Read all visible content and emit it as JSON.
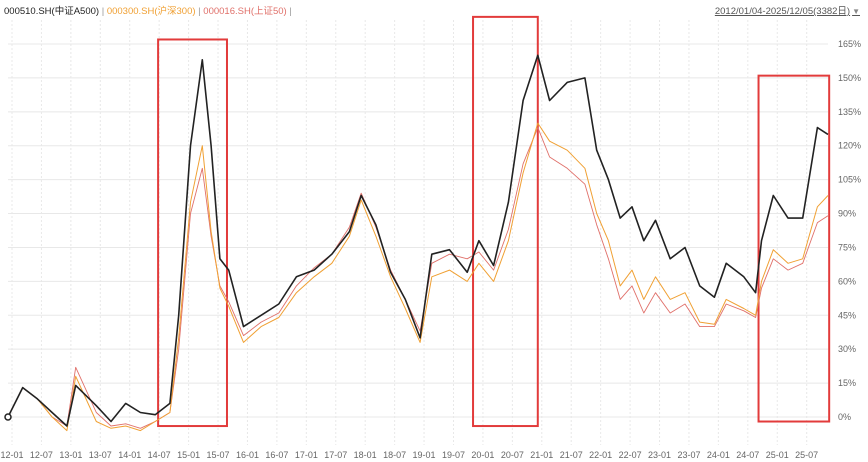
{
  "legend": [
    {
      "label": "000510.SH(中证A500)",
      "color": "#222222"
    },
    {
      "label": "000300.SH(沪深300)",
      "color": "#f0a033"
    },
    {
      "label": "000016.SH(上证50)",
      "color": "#e0706a"
    }
  ],
  "legend_sep": "|",
  "date_range": "2012/01/04-2025/12/05(3382日)",
  "colors": {
    "grid": "#e8e8e8",
    "highlight": "#e23b3b"
  },
  "chart_data": {
    "type": "line",
    "title": "",
    "xlabel": "",
    "ylabel": "",
    "y_unit": "%",
    "ylim": [
      -5,
      170
    ],
    "yticks": [
      0,
      15,
      30,
      45,
      60,
      75,
      90,
      105,
      120,
      135,
      150,
      165
    ],
    "xticks": [
      "12-01",
      "12-07",
      "13-01",
      "13-07",
      "14-01",
      "14-07",
      "15-01",
      "15-07",
      "16-01",
      "16-07",
      "17-01",
      "17-07",
      "18-01",
      "18-07",
      "19-01",
      "19-07",
      "20-01",
      "20-07",
      "21-01",
      "21-07",
      "22-01",
      "22-07",
      "23-01",
      "23-07",
      "24-01",
      "24-07",
      "25-01",
      "25-07"
    ],
    "grid": true,
    "legend_position": "top-left",
    "x": [
      2012.0,
      2012.25,
      2012.5,
      2012.75,
      2013.0,
      2013.15,
      2013.5,
      2013.75,
      2014.0,
      2014.25,
      2014.5,
      2014.75,
      2014.9,
      2015.1,
      2015.3,
      2015.45,
      2015.6,
      2015.75,
      2016.0,
      2016.3,
      2016.6,
      2016.9,
      2017.2,
      2017.5,
      2017.8,
      2018.0,
      2018.25,
      2018.5,
      2018.75,
      2019.0,
      2019.2,
      2019.5,
      2019.8,
      2020.0,
      2020.25,
      2020.5,
      2020.75,
      2021.0,
      2021.2,
      2021.5,
      2021.8,
      2022.0,
      2022.2,
      2022.4,
      2022.6,
      2022.8,
      2023.0,
      2023.25,
      2023.5,
      2023.75,
      2024.0,
      2024.2,
      2024.5,
      2024.7,
      2024.8,
      2025.0,
      2025.25,
      2025.5,
      2025.75,
      2025.93
    ],
    "series": [
      {
        "name": "000510.SH(中证A500)",
        "values": [
          0,
          13,
          8,
          2,
          -4,
          14,
          5,
          -2,
          6,
          2,
          1,
          6,
          45,
          120,
          158,
          120,
          70,
          65,
          40,
          45,
          50,
          62,
          65,
          72,
          82,
          98,
          85,
          64,
          52,
          35,
          72,
          74,
          64,
          78,
          67,
          95,
          140,
          160,
          140,
          148,
          150,
          118,
          105,
          88,
          93,
          78,
          87,
          70,
          75,
          58,
          53,
          68,
          62,
          55,
          78,
          98,
          88,
          88,
          128,
          125
        ]
      },
      {
        "name": "000300.SH(沪深300)",
        "values": [
          0,
          13,
          8,
          0,
          -6,
          18,
          -2,
          -5,
          -4,
          -6,
          -2,
          2,
          35,
          95,
          120,
          82,
          57,
          49,
          33,
          40,
          44,
          55,
          62,
          68,
          80,
          96,
          80,
          62,
          48,
          33,
          62,
          65,
          60,
          68,
          60,
          78,
          108,
          130,
          122,
          118,
          110,
          90,
          78,
          58,
          65,
          52,
          62,
          52,
          55,
          42,
          41,
          52,
          48,
          45,
          60,
          74,
          68,
          70,
          93,
          98
        ]
      },
      {
        "name": "000016.SH(上证50)",
        "values": [
          0,
          13,
          8,
          0,
          -4,
          22,
          2,
          -4,
          -3,
          -5,
          -2,
          2,
          30,
          90,
          110,
          80,
          58,
          51,
          36,
          42,
          46,
          58,
          66,
          72,
          84,
          99,
          84,
          65,
          52,
          38,
          68,
          72,
          70,
          73,
          65,
          83,
          112,
          128,
          115,
          110,
          103,
          85,
          70,
          52,
          58,
          46,
          55,
          46,
          50,
          40,
          40,
          50,
          47,
          44,
          57,
          70,
          65,
          68,
          86,
          89
        ]
      }
    ],
    "highlight_boxes": [
      {
        "x_from": 2014.55,
        "x_to": 2015.72,
        "y_from": -4,
        "y_to": 167
      },
      {
        "x_from": 2019.9,
        "x_to": 2021.0,
        "y_from": -4,
        "y_to": 177
      },
      {
        "x_from": 2024.75,
        "x_to": 2025.95,
        "y_from": -2,
        "y_to": 151
      }
    ]
  }
}
